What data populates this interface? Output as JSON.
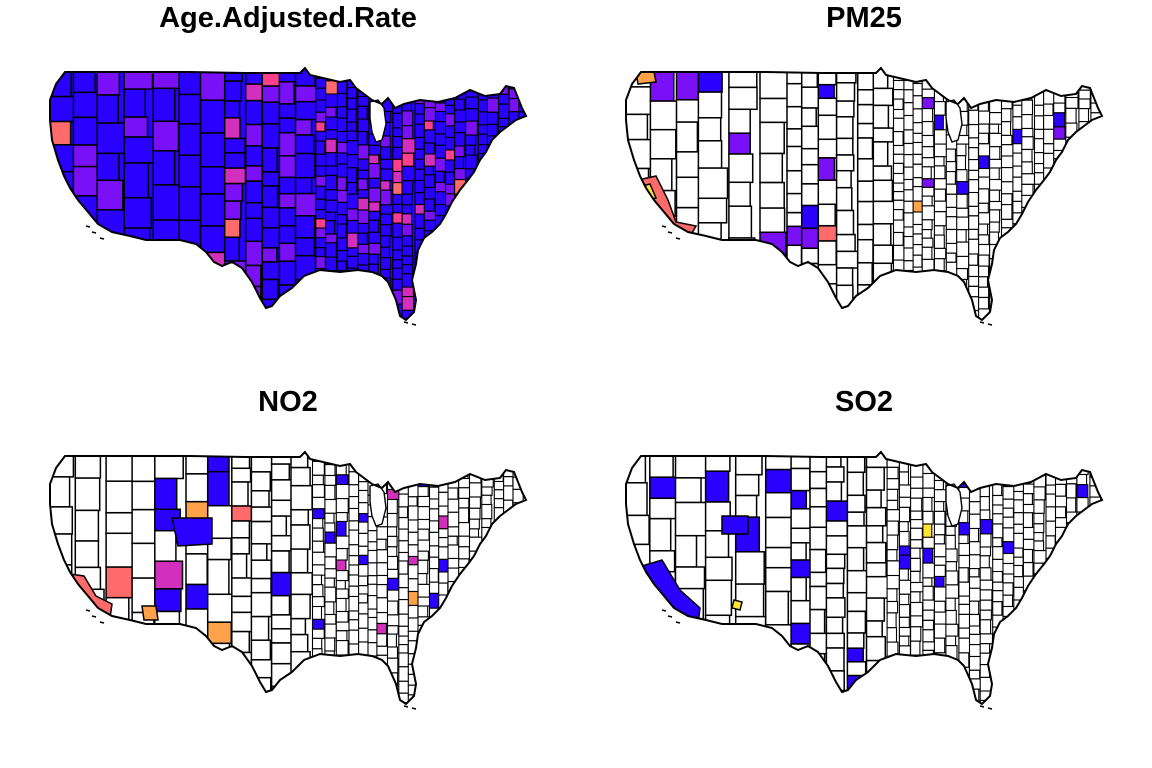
{
  "panels": [
    {
      "title": "Age.Adjusted.Rate",
      "fill": "dense",
      "base": "#2a00ff",
      "accents": [
        "#7a10f5",
        "#d22fbd",
        "#ff3f8c",
        "#ff6a6a"
      ]
    },
    {
      "title": "PM25",
      "fill": "sparse",
      "base": "#ffffff",
      "accents": [
        "#2a00ff",
        "#7a10f5",
        "#d22fbd",
        "#ff6a6a",
        "#ffa24a"
      ]
    },
    {
      "title": "NO2",
      "fill": "sparse",
      "base": "#ffffff",
      "accents": [
        "#2a00ff",
        "#d22fbd",
        "#ff6a6a",
        "#ffa24a"
      ]
    },
    {
      "title": "SO2",
      "fill": "sparse",
      "base": "#ffffff",
      "accents": [
        "#2a00ff",
        "#ffe433"
      ]
    }
  ]
}
